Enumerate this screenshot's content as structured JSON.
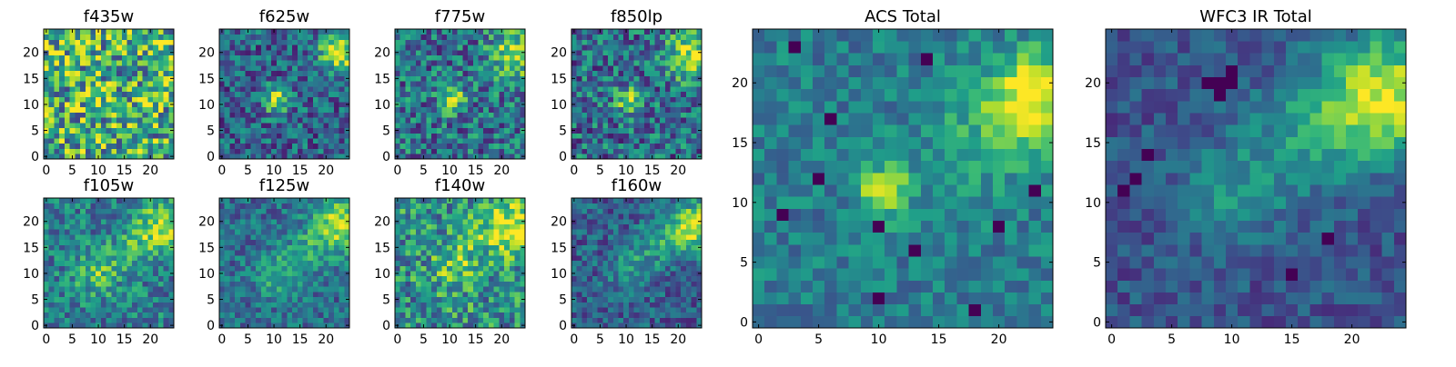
{
  "chart_data": [
    {
      "type": "heatmap",
      "title": "f435w",
      "xticks": [
        0,
        5,
        10,
        15,
        20
      ],
      "yticks": [
        0,
        5,
        10,
        15,
        20
      ],
      "xlim": [
        -0.5,
        24.5
      ],
      "ylim": [
        -0.5,
        24.5
      ],
      "colormap": "viridis",
      "seed": 11,
      "noise": 0.42,
      "base": 0.62,
      "blobs": [
        [
          10,
          12,
          1.6,
          0.15
        ],
        [
          22,
          20,
          3,
          0.05
        ]
      ]
    },
    {
      "type": "heatmap",
      "title": "f625w",
      "xticks": [
        0,
        5,
        10,
        15,
        20
      ],
      "yticks": [
        0,
        5,
        10,
        15,
        20
      ],
      "xlim": [
        -0.5,
        24.5
      ],
      "ylim": [
        -0.5,
        24.5
      ],
      "colormap": "viridis",
      "seed": 23,
      "noise": 0.26,
      "base": 0.32,
      "blobs": [
        [
          10.5,
          11,
          1.8,
          0.55
        ],
        [
          22.5,
          20,
          2.8,
          0.6
        ]
      ]
    },
    {
      "type": "heatmap",
      "title": "f775w",
      "xticks": [
        0,
        5,
        10,
        15,
        20
      ],
      "yticks": [
        0,
        5,
        10,
        15,
        20
      ],
      "xlim": [
        -0.5,
        24.5
      ],
      "ylim": [
        -0.5,
        24.5
      ],
      "colormap": "viridis",
      "seed": 37,
      "noise": 0.3,
      "base": 0.38,
      "blobs": [
        [
          10.5,
          11,
          1.6,
          0.55
        ],
        [
          22.5,
          19.5,
          3,
          0.55
        ]
      ]
    },
    {
      "type": "heatmap",
      "title": "f850lp",
      "xticks": [
        0,
        5,
        10,
        15,
        20
      ],
      "yticks": [
        0,
        5,
        10,
        15,
        20
      ],
      "xlim": [
        -0.5,
        24.5
      ],
      "ylim": [
        -0.5,
        24.5
      ],
      "colormap": "viridis",
      "seed": 41,
      "noise": 0.3,
      "base": 0.36,
      "blobs": [
        [
          10.5,
          11,
          1.8,
          0.45
        ],
        [
          22.5,
          19.5,
          3.2,
          0.55
        ]
      ]
    },
    {
      "type": "heatmap",
      "title": "f105w",
      "xticks": [
        0,
        5,
        10,
        15,
        20
      ],
      "yticks": [
        0,
        5,
        10,
        15,
        20
      ],
      "xlim": [
        -0.5,
        24.5
      ],
      "ylim": [
        -0.5,
        24.5
      ],
      "colormap": "viridis",
      "seed": 53,
      "noise": 0.24,
      "base": 0.42,
      "blobs": [
        [
          10,
          10,
          3,
          0.3
        ],
        [
          23,
          19,
          3.5,
          0.5
        ],
        [
          17,
          15,
          3,
          0.2
        ]
      ]
    },
    {
      "type": "heatmap",
      "title": "f125w",
      "xticks": [
        0,
        5,
        10,
        15,
        20
      ],
      "yticks": [
        0,
        5,
        10,
        15,
        20
      ],
      "xlim": [
        -0.5,
        24.5
      ],
      "ylim": [
        -0.5,
        24.5
      ],
      "colormap": "viridis",
      "seed": 61,
      "noise": 0.2,
      "base": 0.36,
      "blobs": [
        [
          11,
          10,
          3,
          0.28
        ],
        [
          23,
          19.5,
          3.5,
          0.55
        ],
        [
          17,
          15,
          3,
          0.2
        ]
      ]
    },
    {
      "type": "heatmap",
      "title": "f140w",
      "xticks": [
        0,
        5,
        10,
        15,
        20
      ],
      "yticks": [
        0,
        5,
        10,
        15,
        20
      ],
      "xlim": [
        -0.5,
        24.5
      ],
      "ylim": [
        -0.5,
        24.5
      ],
      "colormap": "viridis",
      "seed": 79,
      "noise": 0.3,
      "base": 0.5,
      "blobs": [
        [
          11,
          11,
          3,
          0.25
        ],
        [
          23,
          19,
          3.5,
          0.5
        ],
        [
          16,
          17,
          3,
          0.2
        ]
      ]
    },
    {
      "type": "heatmap",
      "title": "f160w",
      "xticks": [
        0,
        5,
        10,
        15,
        20
      ],
      "yticks": [
        0,
        5,
        10,
        15,
        20
      ],
      "xlim": [
        -0.5,
        24.5
      ],
      "ylim": [
        -0.5,
        24.5
      ],
      "colormap": "viridis",
      "seed": 83,
      "noise": 0.2,
      "base": 0.3,
      "blobs": [
        [
          11,
          11,
          3,
          0.25
        ],
        [
          23,
          19,
          3.5,
          0.6
        ],
        [
          16,
          16,
          3,
          0.2
        ]
      ]
    },
    {
      "type": "heatmap",
      "title": "ACS Total",
      "xticks": [
        0,
        5,
        10,
        15,
        20
      ],
      "yticks": [
        0,
        5,
        10,
        15,
        20
      ],
      "xlim": [
        -0.5,
        24.5
      ],
      "ylim": [
        -0.5,
        24.5
      ],
      "colormap": "viridis",
      "seed": 97,
      "noise": 0.16,
      "base": 0.42,
      "blobs": [
        [
          10.5,
          11,
          1.5,
          0.55
        ],
        [
          23,
          19,
          2.5,
          0.55
        ],
        [
          19,
          16,
          3.5,
          0.2
        ]
      ],
      "holes": [
        [
          6,
          17
        ],
        [
          2,
          9
        ],
        [
          10,
          8
        ],
        [
          13,
          6
        ],
        [
          10,
          2
        ],
        [
          18,
          1
        ],
        [
          23,
          11
        ],
        [
          20,
          8
        ],
        [
          3,
          23
        ],
        [
          14,
          22
        ],
        [
          5,
          12
        ]
      ]
    },
    {
      "type": "heatmap",
      "title": "WFC3 IR Total",
      "xticks": [
        0,
        5,
        10,
        15,
        20
      ],
      "yticks": [
        0,
        5,
        10,
        15,
        20
      ],
      "xlim": [
        -0.5,
        24.5
      ],
      "ylim": [
        -0.5,
        24.5
      ],
      "colormap": "viridis",
      "seed": 101,
      "noise": 0.14,
      "base": 0.26,
      "blobs": [
        [
          10.5,
          11,
          3,
          0.25
        ],
        [
          23,
          19,
          3.5,
          0.65
        ],
        [
          17,
          16,
          3.5,
          0.3
        ]
      ],
      "holes": [
        [
          8,
          20
        ],
        [
          9,
          20
        ],
        [
          10,
          20
        ],
        [
          10,
          21
        ],
        [
          9,
          19
        ],
        [
          2,
          12
        ],
        [
          1,
          11
        ],
        [
          3,
          14
        ],
        [
          18,
          7
        ],
        [
          15,
          4
        ]
      ]
    }
  ]
}
